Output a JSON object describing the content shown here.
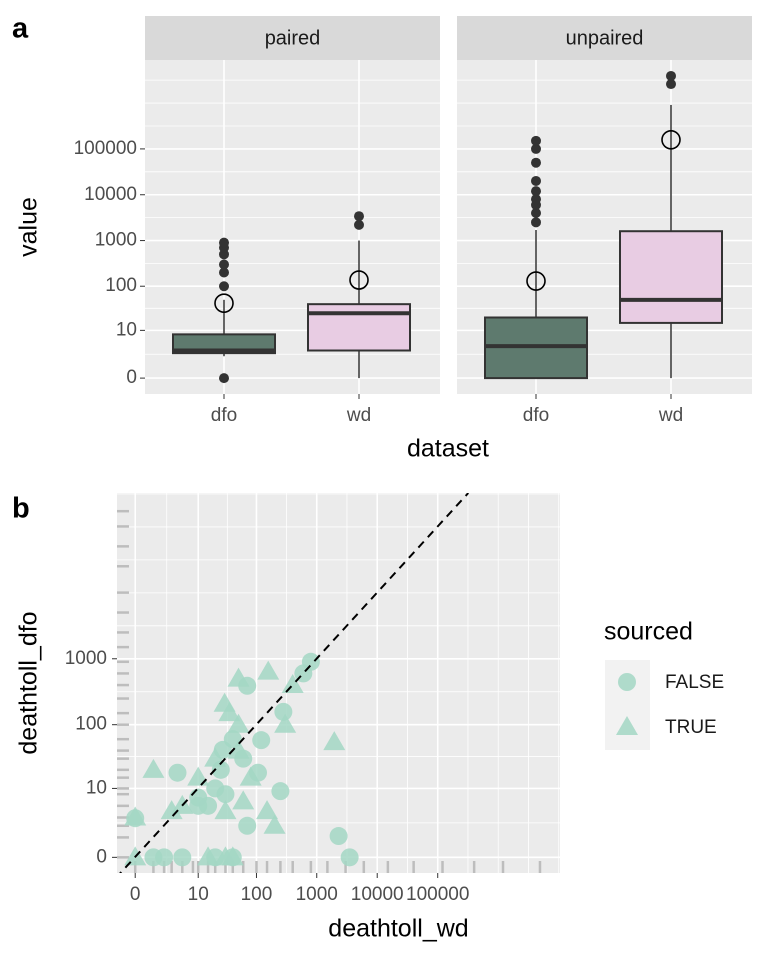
{
  "chart_data": [
    {
      "type": "boxplot",
      "tag": "a",
      "y_label": "value",
      "x_label": "dataset",
      "yscale": "log1p",
      "ylim": [
        -0.55,
        8700000
      ],
      "yticks": [
        0,
        10,
        100,
        1000,
        10000,
        100000
      ],
      "grid": true,
      "facets": [
        {
          "name": "paired",
          "boxes": [
            {
              "name": "dfo",
              "color": "#5e7a6e",
              "whisker_low": 2,
              "q1": 2.5,
              "median": 3,
              "q3": 8,
              "whisker_high": 50,
              "mean": 42,
              "outliers": [
                0,
                100,
                200,
                300,
                500,
                700,
                900
              ]
            },
            {
              "name": "wd",
              "color": "#e8cce3",
              "whisker_low": 0,
              "q1": 3,
              "median": 25,
              "q3": 40,
              "whisker_high": 1000,
              "mean": 137,
              "outliers": [
                2200,
                3400
              ]
            }
          ]
        },
        {
          "name": "unpaired",
          "boxes": [
            {
              "name": "dfo",
              "color": "#5e7a6e",
              "whisker_low": 0,
              "q1": 0,
              "median": 4,
              "q3": 20,
              "whisker_high": 1700,
              "mean": 130,
              "outliers": [
                2500,
                4000,
                6000,
                8000,
                12000,
                20000,
                50000,
                100000,
                150000
              ]
            },
            {
              "name": "wd",
              "color": "#e8cce3",
              "whisker_low": 0,
              "q1": 15,
              "median": 50,
              "q3": 1600,
              "whisker_high": 910000,
              "mean": 158000,
              "outliers": [
                2600000,
                3900000
              ]
            }
          ]
        }
      ]
    },
    {
      "type": "scatter",
      "tag": "b",
      "x_label": "deathtoll_wd",
      "y_label": "deathtoll_dfo",
      "xscale": "log1p",
      "yscale": "log1p",
      "xlim": [
        -0.5,
        10500000
      ],
      "ylim": [
        -0.42,
        320000
      ],
      "xticks": [
        0,
        10,
        100,
        1000,
        10000,
        100000
      ],
      "yticks": [
        0,
        10,
        100,
        1000
      ],
      "grid": true,
      "identity_line": true,
      "legend_title": "sourced",
      "legend_position": "right",
      "series": [
        {
          "name": "FALSE",
          "shape": "circle",
          "color": "#a3d7c4",
          "x": [
            800,
            600,
            70,
            280,
            120,
            40,
            30,
            4,
            10,
            15,
            20,
            25,
            27,
            106,
            250,
            2300,
            3500,
            70,
            2,
            1,
            0,
            5,
            20,
            40,
            10,
            60
          ],
          "y": [
            900,
            600,
            390,
            157,
            58,
            60,
            8,
            18,
            7,
            5,
            10,
            20,
            41,
            18,
            9,
            1.1,
            0,
            2,
            0,
            0,
            2.9,
            0,
            0,
            0,
            5,
            30
          ]
        },
        {
          "name": "TRUE",
          "shape": "triangle",
          "color": "#a3d7c4",
          "x": [
            50,
            29,
            157,
            400,
            300,
            1950,
            50,
            1,
            0,
            5,
            10,
            20,
            50,
            80,
            150,
            200,
            30,
            3,
            0,
            15,
            30,
            40,
            60,
            35
          ],
          "y": [
            500,
            208,
            640,
            400,
            100,
            54,
            100,
            20,
            3,
            5,
            15,
            30,
            40,
            15,
            4,
            2,
            4,
            4,
            0,
            0,
            0,
            0,
            6,
            150
          ]
        }
      ],
      "rug_x": [
        0,
        1,
        2,
        3,
        5,
        8,
        10,
        15,
        20,
        30,
        40,
        60,
        100,
        150,
        250,
        400,
        800,
        1500,
        3000,
        6000,
        15000,
        40000,
        120000,
        400000,
        1200000,
        4900000
      ],
      "rug_y": [
        0,
        1,
        2,
        3,
        5,
        8,
        10,
        15,
        20,
        30,
        40,
        60,
        100,
        150,
        250,
        400,
        600,
        900,
        1500,
        2500,
        5000,
        10000,
        25000,
        50000,
        100000,
        170000
      ]
    }
  ]
}
